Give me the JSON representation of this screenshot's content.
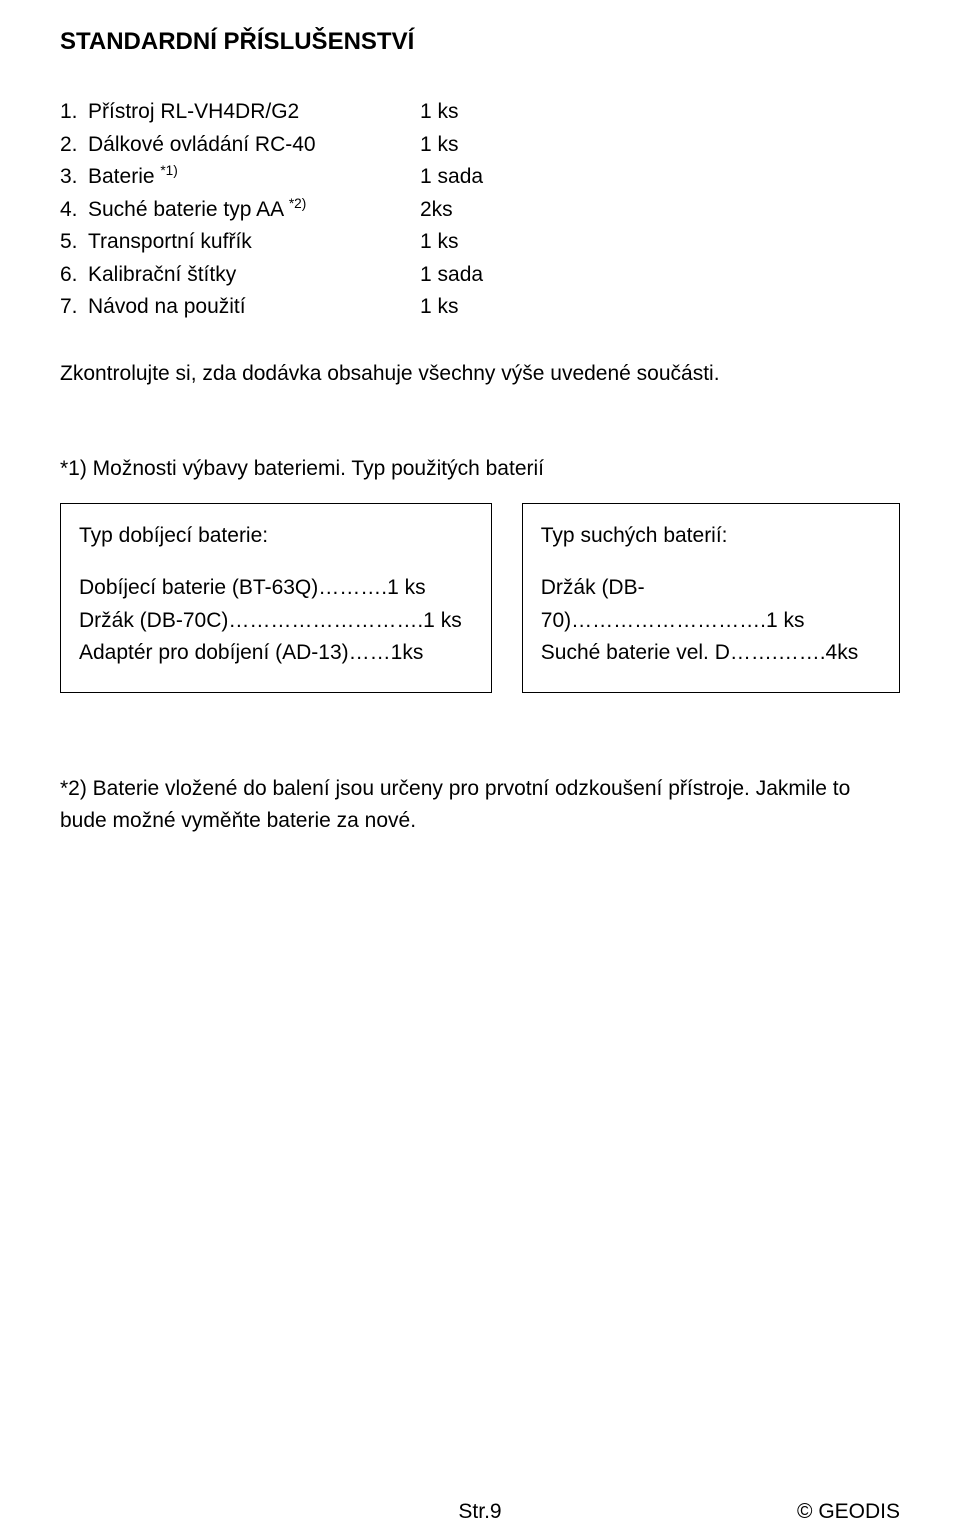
{
  "heading": "STANDARDNÍ PŘÍSLUŠENSTVÍ",
  "items": [
    {
      "num": "1.",
      "label_pre": "Přístroj RL-VH4DR/G2",
      "sup": "",
      "qty": "1 ks"
    },
    {
      "num": "2.",
      "label_pre": "Dálkové ovládání RC-40",
      "sup": "",
      "qty": "1 ks"
    },
    {
      "num": "3.",
      "label_pre": "Baterie ",
      "sup": "*1)",
      "qty": "1 sada"
    },
    {
      "num": "4.",
      "label_pre": "Suché baterie typ AA ",
      "sup": "*2)",
      "qty": " 2ks"
    },
    {
      "num": "5.",
      "label_pre": "Transportní kufřík",
      "sup": "",
      "qty": "1 ks"
    },
    {
      "num": "6.",
      "label_pre": "Kalibrační štítky",
      "sup": "",
      "qty": "1 sada"
    },
    {
      "num": "7.",
      "label_pre": "Návod na použití",
      "sup": "",
      "qty": "1 ks"
    }
  ],
  "check_text": "Zkontrolujte si, zda dodávka obsahuje všechny výše uvedené součásti.",
  "note1": "*1) Možnosti výbavy bateriemi. Typ použitých baterií",
  "box_left": {
    "title": "Typ dobíjecí baterie:",
    "lines": [
      "Dobíjecí baterie (BT-63Q)……….1 ks",
      "Držák (DB-70C)……………………….1 ks",
      "Adaptér pro dobíjení (AD-13)……1ks"
    ]
  },
  "box_right": {
    "title": "Typ suchých baterií:",
    "lines": [
      "Držák (DB-70)……………………….1 ks",
      "Suché baterie vel. D…….…….4ks"
    ]
  },
  "note2": "*2) Baterie vložené do balení jsou určeny pro prvotní odzkoušení přístroje. Jakmile to bude možné vyměňte baterie za nové.",
  "footer": {
    "page": "Str.9",
    "copyright": "©",
    "brand": "GEODIS"
  }
}
